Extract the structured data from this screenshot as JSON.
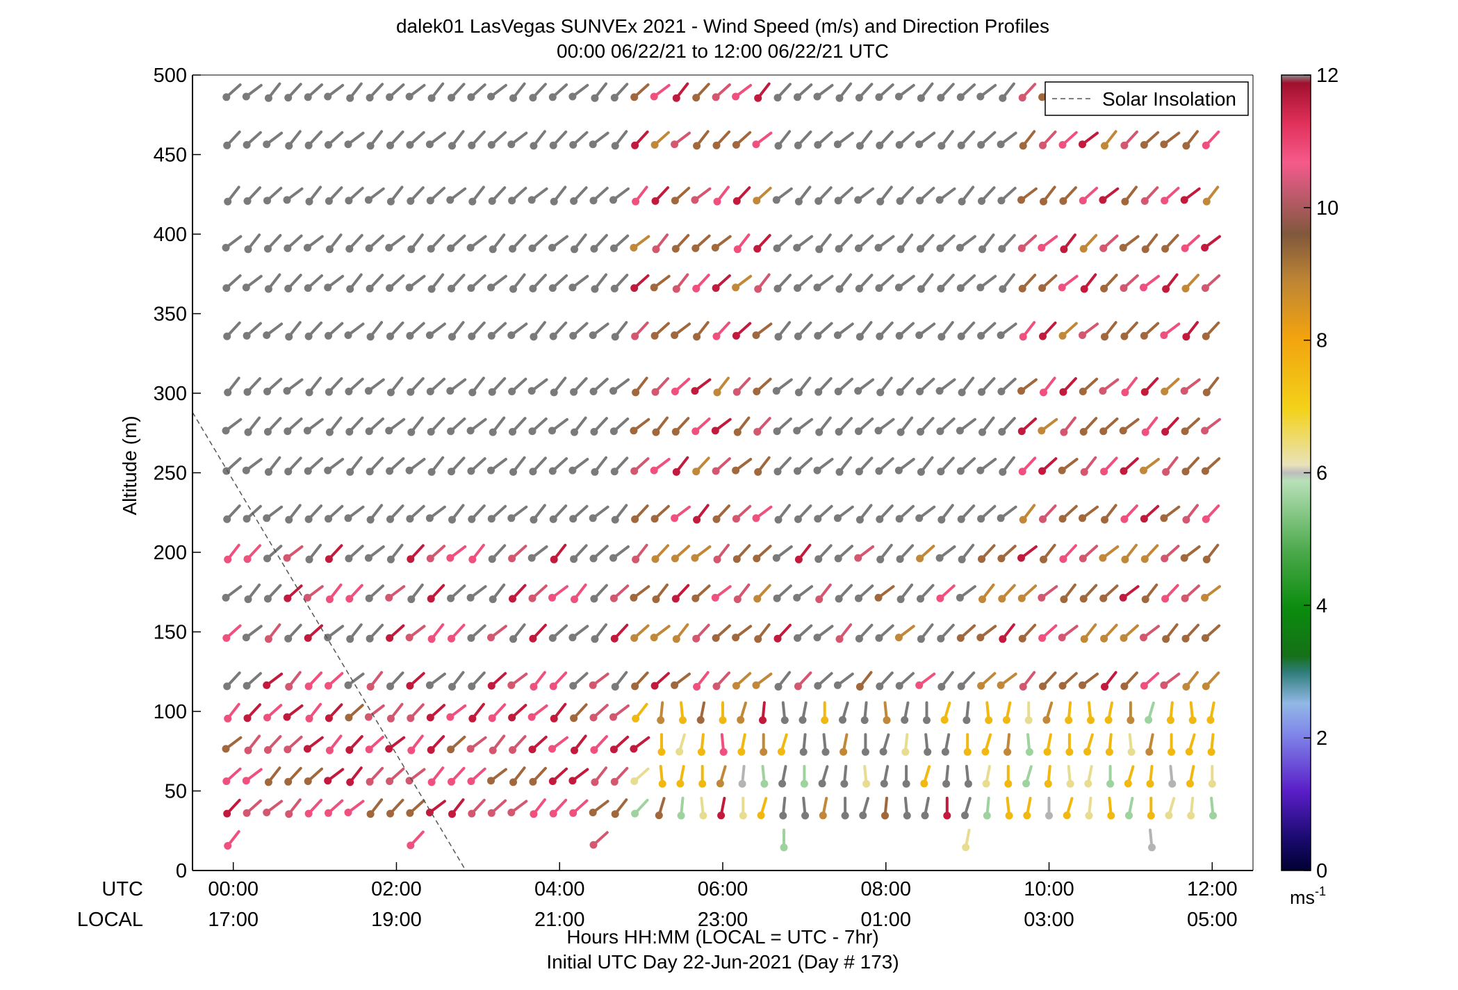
{
  "chart_data": {
    "type": "wind_profile",
    "title": "dalek01 LasVegas SUNVEx 2021 - Wind Speed (m/s) and Direction Profiles",
    "subtitle": "00:00 06/22/21 to 12:00 06/22/21  UTC",
    "ylabel": "Altitude (m)",
    "xlabel": "Hours HH:MM  (LOCAL = UTC - 7hr)",
    "xlabel2": "Initial UTC Day 22-Jun-2021 (Day # 173)",
    "xlim_hours": [
      -0.5,
      12.5
    ],
    "ylim": [
      0,
      500
    ],
    "y_ticks": [
      0,
      50,
      100,
      150,
      200,
      250,
      300,
      350,
      400,
      450,
      500
    ],
    "utc_label": "UTC",
    "local_label": "LOCAL",
    "x_ticks_utc": [
      "00:00",
      "02:00",
      "04:00",
      "06:00",
      "08:00",
      "10:00",
      "12:00"
    ],
    "x_ticks_local": [
      "17:00",
      "19:00",
      "21:00",
      "23:00",
      "01:00",
      "03:00",
      "05:00"
    ],
    "x_tick_hours": [
      0,
      2,
      4,
      6,
      8,
      10,
      12
    ],
    "legend_label": "Solar Insolation",
    "legend_position": "top-right",
    "colorbar_ticks": [
      0,
      2,
      4,
      6,
      8,
      10,
      12
    ],
    "colorbar_unit": "ms-1",
    "colorbar_range": [
      0,
      12
    ],
    "solar_insolation_line": [
      [
        -0.5,
        288
      ],
      [
        2.85,
        0
      ]
    ],
    "altitudes": [
      20,
      40,
      60,
      80,
      100,
      120,
      150,
      175,
      200,
      225,
      255,
      280,
      305,
      340,
      370,
      395,
      425,
      460,
      490
    ],
    "time_hours_range": [
      0,
      12
    ],
    "time_step_hours": 0.25,
    "color_codes": {
      "G": "#7a7a7a",
      "R": "#c21a3c",
      "P": "#f0507e",
      "M": "#d45770",
      "B": "#a0683c",
      "T": "#c08838",
      "Y": "#f0b810",
      "L": "#e8dc90",
      "E": "#9ed29e",
      "V": "#b4b4b4",
      "N": "#1e8c1e"
    },
    "direction_rule": "wind-from direction in degrees clockwise from north; ~225 (SW) in the first hours turning to ~180-200 (S/SSW) near the surface later",
    "speed_rule": "speed in m/s encoded by the colorbar; gray = outside color scale (quality flagged)"
  }
}
